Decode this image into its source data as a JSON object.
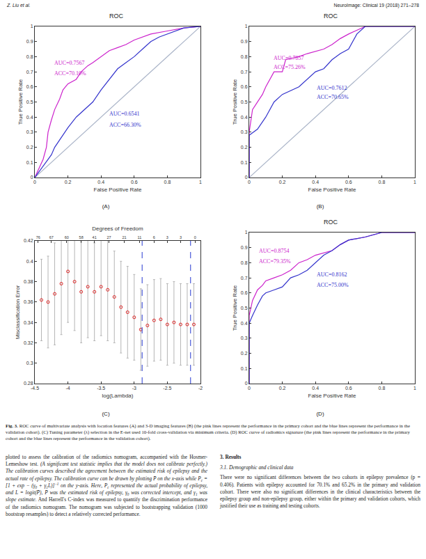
{
  "header": {
    "left": "Z. Liu et al.",
    "right": "NeuroImage: Clinical 19 (2018) 271–278"
  },
  "panels": [
    "(A)",
    "(B)",
    "(C)",
    "(D)"
  ],
  "chart_data": [
    {
      "type": "line",
      "title": "ROC",
      "xlabel": "False Positive Rate",
      "ylabel": "True Positive Rate",
      "xlim": [
        0,
        1
      ],
      "ylim": [
        0,
        1
      ],
      "xticks": [
        0,
        0.2,
        0.4,
        0.6,
        0.8,
        1
      ],
      "yticks": [
        0,
        0.1,
        0.2,
        0.3,
        0.4,
        0.5,
        0.6,
        0.7,
        0.8,
        0.9,
        1
      ],
      "grid": false,
      "series": [
        {
          "color": "#aab4c8",
          "x": [
            0,
            1
          ],
          "values": [
            0,
            1
          ]
        },
        {
          "color": "#cc22cc",
          "x": [
            0,
            0.02,
            0.05,
            0.07,
            0.08,
            0.1,
            0.12,
            0.15,
            0.17,
            0.2,
            0.25,
            0.28,
            0.32,
            0.35,
            0.4,
            0.45,
            0.5,
            0.55,
            0.6,
            0.7,
            0.8,
            0.9,
            1
          ],
          "values": [
            0,
            0.05,
            0.12,
            0.2,
            0.3,
            0.38,
            0.45,
            0.52,
            0.58,
            0.62,
            0.65,
            0.7,
            0.74,
            0.76,
            0.8,
            0.84,
            0.86,
            0.88,
            0.91,
            0.95,
            0.97,
            0.99,
            1
          ]
        },
        {
          "color": "#3333cc",
          "x": [
            0,
            0.02,
            0.05,
            0.1,
            0.12,
            0.15,
            0.2,
            0.25,
            0.3,
            0.35,
            0.4,
            0.45,
            0.5,
            0.55,
            0.6,
            0.65,
            0.7,
            0.75,
            0.8,
            0.9,
            1
          ],
          "values": [
            0,
            0.03,
            0.07,
            0.15,
            0.2,
            0.25,
            0.33,
            0.4,
            0.45,
            0.5,
            0.58,
            0.65,
            0.72,
            0.76,
            0.8,
            0.85,
            0.9,
            0.93,
            0.95,
            0.99,
            1
          ]
        }
      ],
      "annotations": [
        {
          "text": "AUC=0.7567",
          "color": "#cc22cc"
        },
        {
          "text": "ACC=70.10%",
          "color": "#cc22cc"
        },
        {
          "text": "AUC=0.6541",
          "color": "#3333cc"
        },
        {
          "text": "ACC=66.30%",
          "color": "#3333cc"
        }
      ]
    },
    {
      "type": "line",
      "title": "ROC",
      "xlabel": "False Positive Rate",
      "ylabel": "True Positive Rate",
      "xlim": [
        0,
        1
      ],
      "ylim": [
        0,
        1
      ],
      "xticks": [
        0,
        0.2,
        0.4,
        0.6,
        0.8,
        1
      ],
      "yticks": [
        0,
        0.1,
        0.2,
        0.3,
        0.4,
        0.5,
        0.6,
        0.7,
        0.8,
        0.9,
        1
      ],
      "grid": false,
      "series": [
        {
          "color": "#aab4c8",
          "x": [
            0,
            1
          ],
          "values": [
            0,
            1
          ]
        },
        {
          "color": "#cc22cc",
          "x": [
            0,
            0,
            0.02,
            0.05,
            0.08,
            0.1,
            0.15,
            0.2,
            0.22,
            0.3,
            0.35,
            0.45,
            0.5,
            0.55,
            0.6,
            0.7,
            1
          ],
          "values": [
            0,
            0.3,
            0.45,
            0.5,
            0.55,
            0.6,
            0.7,
            0.7,
            0.78,
            0.8,
            0.82,
            0.85,
            0.88,
            0.92,
            0.95,
            1,
            1
          ]
        },
        {
          "color": "#3333cc",
          "x": [
            0,
            0,
            0.05,
            0.1,
            0.15,
            0.2,
            0.3,
            0.35,
            0.4,
            0.45,
            0.5,
            0.55,
            0.6,
            0.65,
            0.7,
            1
          ],
          "values": [
            0,
            0.28,
            0.32,
            0.4,
            0.5,
            0.55,
            0.6,
            0.65,
            0.7,
            0.72,
            0.78,
            0.82,
            0.85,
            0.95,
            1,
            1
          ]
        }
      ],
      "annotations": [
        {
          "text": "AUC=0.7857",
          "color": "#cc22cc"
        },
        {
          "text": "ACC=75.26%",
          "color": "#cc22cc"
        },
        {
          "text": "AUC=0.7612",
          "color": "#3333cc"
        },
        {
          "text": "ACC=70.65%",
          "color": "#3333cc"
        }
      ]
    },
    {
      "type": "scatter",
      "xlabel": "log(Lambda)",
      "ylabel": "Misclassification Error",
      "x2label": "Degrees of Freedom",
      "xlim": [
        -4.5,
        -2
      ],
      "ylim": [
        0.28,
        0.42
      ],
      "xticks": [
        -4.5,
        -4,
        -3.5,
        -3,
        -2.5,
        -2
      ],
      "yticks": [
        0.28,
        0.3,
        0.32,
        0.34,
        0.36,
        0.38,
        0.4,
        0.42
      ],
      "x2ticks": [
        {
          "value": -4.45,
          "label": "76"
        },
        {
          "value": -4.25,
          "label": "67"
        },
        {
          "value": -4.02,
          "label": "60"
        },
        {
          "value": -3.8,
          "label": "58"
        },
        {
          "value": -3.6,
          "label": "41"
        },
        {
          "value": -3.38,
          "label": "27"
        },
        {
          "value": -3.15,
          "label": "21"
        },
        {
          "value": -2.92,
          "label": "11"
        },
        {
          "value": -2.7,
          "label": "6"
        },
        {
          "value": -2.5,
          "label": "3"
        },
        {
          "value": -2.3,
          "label": "3"
        },
        {
          "value": -2.08,
          "label": "0"
        }
      ],
      "grid": false,
      "series": [
        {
          "color": "#dd2222",
          "marker": "circle",
          "x": [
            -4.4,
            -4.3,
            -4.2,
            -4.1,
            -4.0,
            -3.9,
            -3.8,
            -3.7,
            -3.6,
            -3.5,
            -3.4,
            -3.3,
            -3.2,
            -3.1,
            -3.0,
            -2.9,
            -2.8,
            -2.7,
            -2.6,
            -2.5,
            -2.4,
            -2.3,
            -2.2,
            -2.1
          ],
          "values": [
            0.362,
            0.36,
            0.368,
            0.378,
            0.39,
            0.38,
            0.37,
            0.375,
            0.37,
            0.375,
            0.372,
            0.365,
            0.355,
            0.35,
            0.345,
            0.333,
            0.337,
            0.342,
            0.343,
            0.338,
            0.34,
            0.338,
            0.338,
            0.338
          ],
          "error": [
            0.04,
            0.045,
            0.05,
            0.05,
            0.05,
            0.048,
            0.05,
            0.05,
            0.048,
            0.048,
            0.05,
            0.045,
            0.045,
            0.045,
            0.042,
            0.04,
            0.04,
            0.04,
            0.04,
            0.04,
            0.04,
            0.04,
            0.04,
            0.04
          ]
        },
        {
          "type": "line",
          "color": "#4a5ad8",
          "line_style": "dashed",
          "x": [
            -2.88,
            -2.88
          ],
          "values": [
            0.28,
            0.42
          ]
        },
        {
          "type": "line",
          "color": "#4a5ad8",
          "line_style": "dashed",
          "x": [
            -2.15,
            -2.15
          ],
          "values": [
            0.28,
            0.42
          ]
        }
      ]
    },
    {
      "type": "line",
      "title": "ROC",
      "xlabel": "False Positive Rate",
      "ylabel": "True Positive Rate",
      "xlim": [
        0,
        1
      ],
      "ylim": [
        0,
        1
      ],
      "xticks": [
        0,
        0.2,
        0.4,
        0.6,
        0.8,
        1
      ],
      "yticks": [
        0,
        0.1,
        0.2,
        0.3,
        0.4,
        0.5,
        0.6,
        0.7,
        0.8,
        0.9,
        1
      ],
      "grid": false,
      "series": [
        {
          "color": "#cc22cc",
          "x": [
            0,
            0,
            0.02,
            0.05,
            0.08,
            0.1,
            0.15,
            0.2,
            0.25,
            0.3,
            0.35,
            0.4,
            0.5,
            0.55,
            0.6,
            0.7,
            0.8,
            1
          ],
          "values": [
            0,
            0.45,
            0.55,
            0.62,
            0.65,
            0.68,
            0.7,
            0.72,
            0.75,
            0.8,
            0.82,
            0.85,
            0.88,
            0.92,
            0.95,
            0.97,
            1,
            1
          ]
        },
        {
          "color": "#3333cc",
          "x": [
            0,
            0,
            0.02,
            0.05,
            0.08,
            0.1,
            0.15,
            0.2,
            0.25,
            0.3,
            0.35,
            0.4,
            0.45,
            0.5,
            0.55,
            0.6,
            0.7,
            0.8,
            1
          ],
          "values": [
            0,
            0.4,
            0.45,
            0.52,
            0.58,
            0.6,
            0.62,
            0.64,
            0.7,
            0.72,
            0.75,
            0.8,
            0.85,
            0.88,
            0.92,
            0.95,
            0.97,
            1,
            1
          ]
        }
      ],
      "annotations": [
        {
          "text": "AUC=0.8754",
          "color": "#cc22cc"
        },
        {
          "text": "ACC=79.35%",
          "color": "#cc22cc"
        },
        {
          "text": "AUC=0.8162",
          "color": "#3333cc"
        },
        {
          "text": "ACC=75.00%",
          "color": "#3333cc"
        }
      ]
    }
  ],
  "caption": [
    {
      "text": "Fig. 3.",
      "style": [
        "bold"
      ]
    },
    {
      "text": " ROC curve of multivariate analysis with location features (A) and 3-D imaging features (B) (the pink lines represent the performance in the primary cohort and the blue lines represent the performance in the validation cohort). (C) Tuning parameter (λ) selection in the E-net used 10-fold cross-validation via minimum criteria. (D) ROC curve of radiomics signature (the pink lines represent the performance in the primary cohort and the blue lines represent the performance in the validation cohort)."
    }
  ],
  "left_column": [
    {
      "text": "plotted to assess the calibration of the radiomics nomogram, accompanied with the Hosmer-Lemeshow test. "
    },
    {
      "text": "(A significant test statistic implies that the model does not calibrate perfectly.) The calibration curves described the agreement between the estimated risk of epilepsy and the actual rate of epilepsy. The calibration curve can be drawn by plotting P̄ on the x-axis while P",
      "style": [
        "italic"
      ]
    },
    {
      "text": "c",
      "style": [
        "italic",
        "sub"
      ]
    },
    {
      "text": " = [1 + exp − (γ",
      "style": [
        "italic"
      ]
    },
    {
      "text": "0",
      "style": [
        "italic",
        "sub"
      ]
    },
    {
      "text": " + γ",
      "style": [
        "italic"
      ]
    },
    {
      "text": "1",
      "style": [
        "italic",
        "sub"
      ]
    },
    {
      "text": "L)]",
      "style": [
        "italic"
      ]
    },
    {
      "text": "−1",
      "style": [
        "italic",
        "sup"
      ]
    },
    {
      "text": " on the y-axis. Here, P",
      "style": [
        "italic"
      ]
    },
    {
      "text": "c",
      "style": [
        "italic",
        "sub"
      ]
    },
    {
      "text": " represented the actual probability of epilepsy, and L = logit(P̄), P̄ was the estimated risk of epilepsy, γ",
      "style": [
        "italic"
      ]
    },
    {
      "text": "0",
      "style": [
        "italic",
        "sub"
      ]
    },
    {
      "text": " was corrected intercept, and γ",
      "style": [
        "italic"
      ]
    },
    {
      "text": "1",
      "style": [
        "italic",
        "sub"
      ]
    },
    {
      "text": " was slope estimate.",
      "style": [
        "italic"
      ]
    },
    {
      "text": " And Harrell's C-index was measured to quantify the discrimination performance of the radiomics nomogram. The nomogram was subjected to bootstrapping validation (1000 bootstrap resamples) to detect a relatively corrected performance."
    }
  ],
  "right_column": {
    "heading": "3. Results",
    "subheading": "3.1. Demographic and clinical data",
    "paragraph": "There were no significant differences between the two cohorts in epilepsy prevalence (p = 0.406). Patients with epilepsy accounted for 70.1% and 65.2% in the primary and validation cohort. There were also no significant differences in the clinical characteristics between the epilepsy group and non-epilepsy group, either within the primary and validation cohorts, which justified their use as training and testing cohorts."
  }
}
